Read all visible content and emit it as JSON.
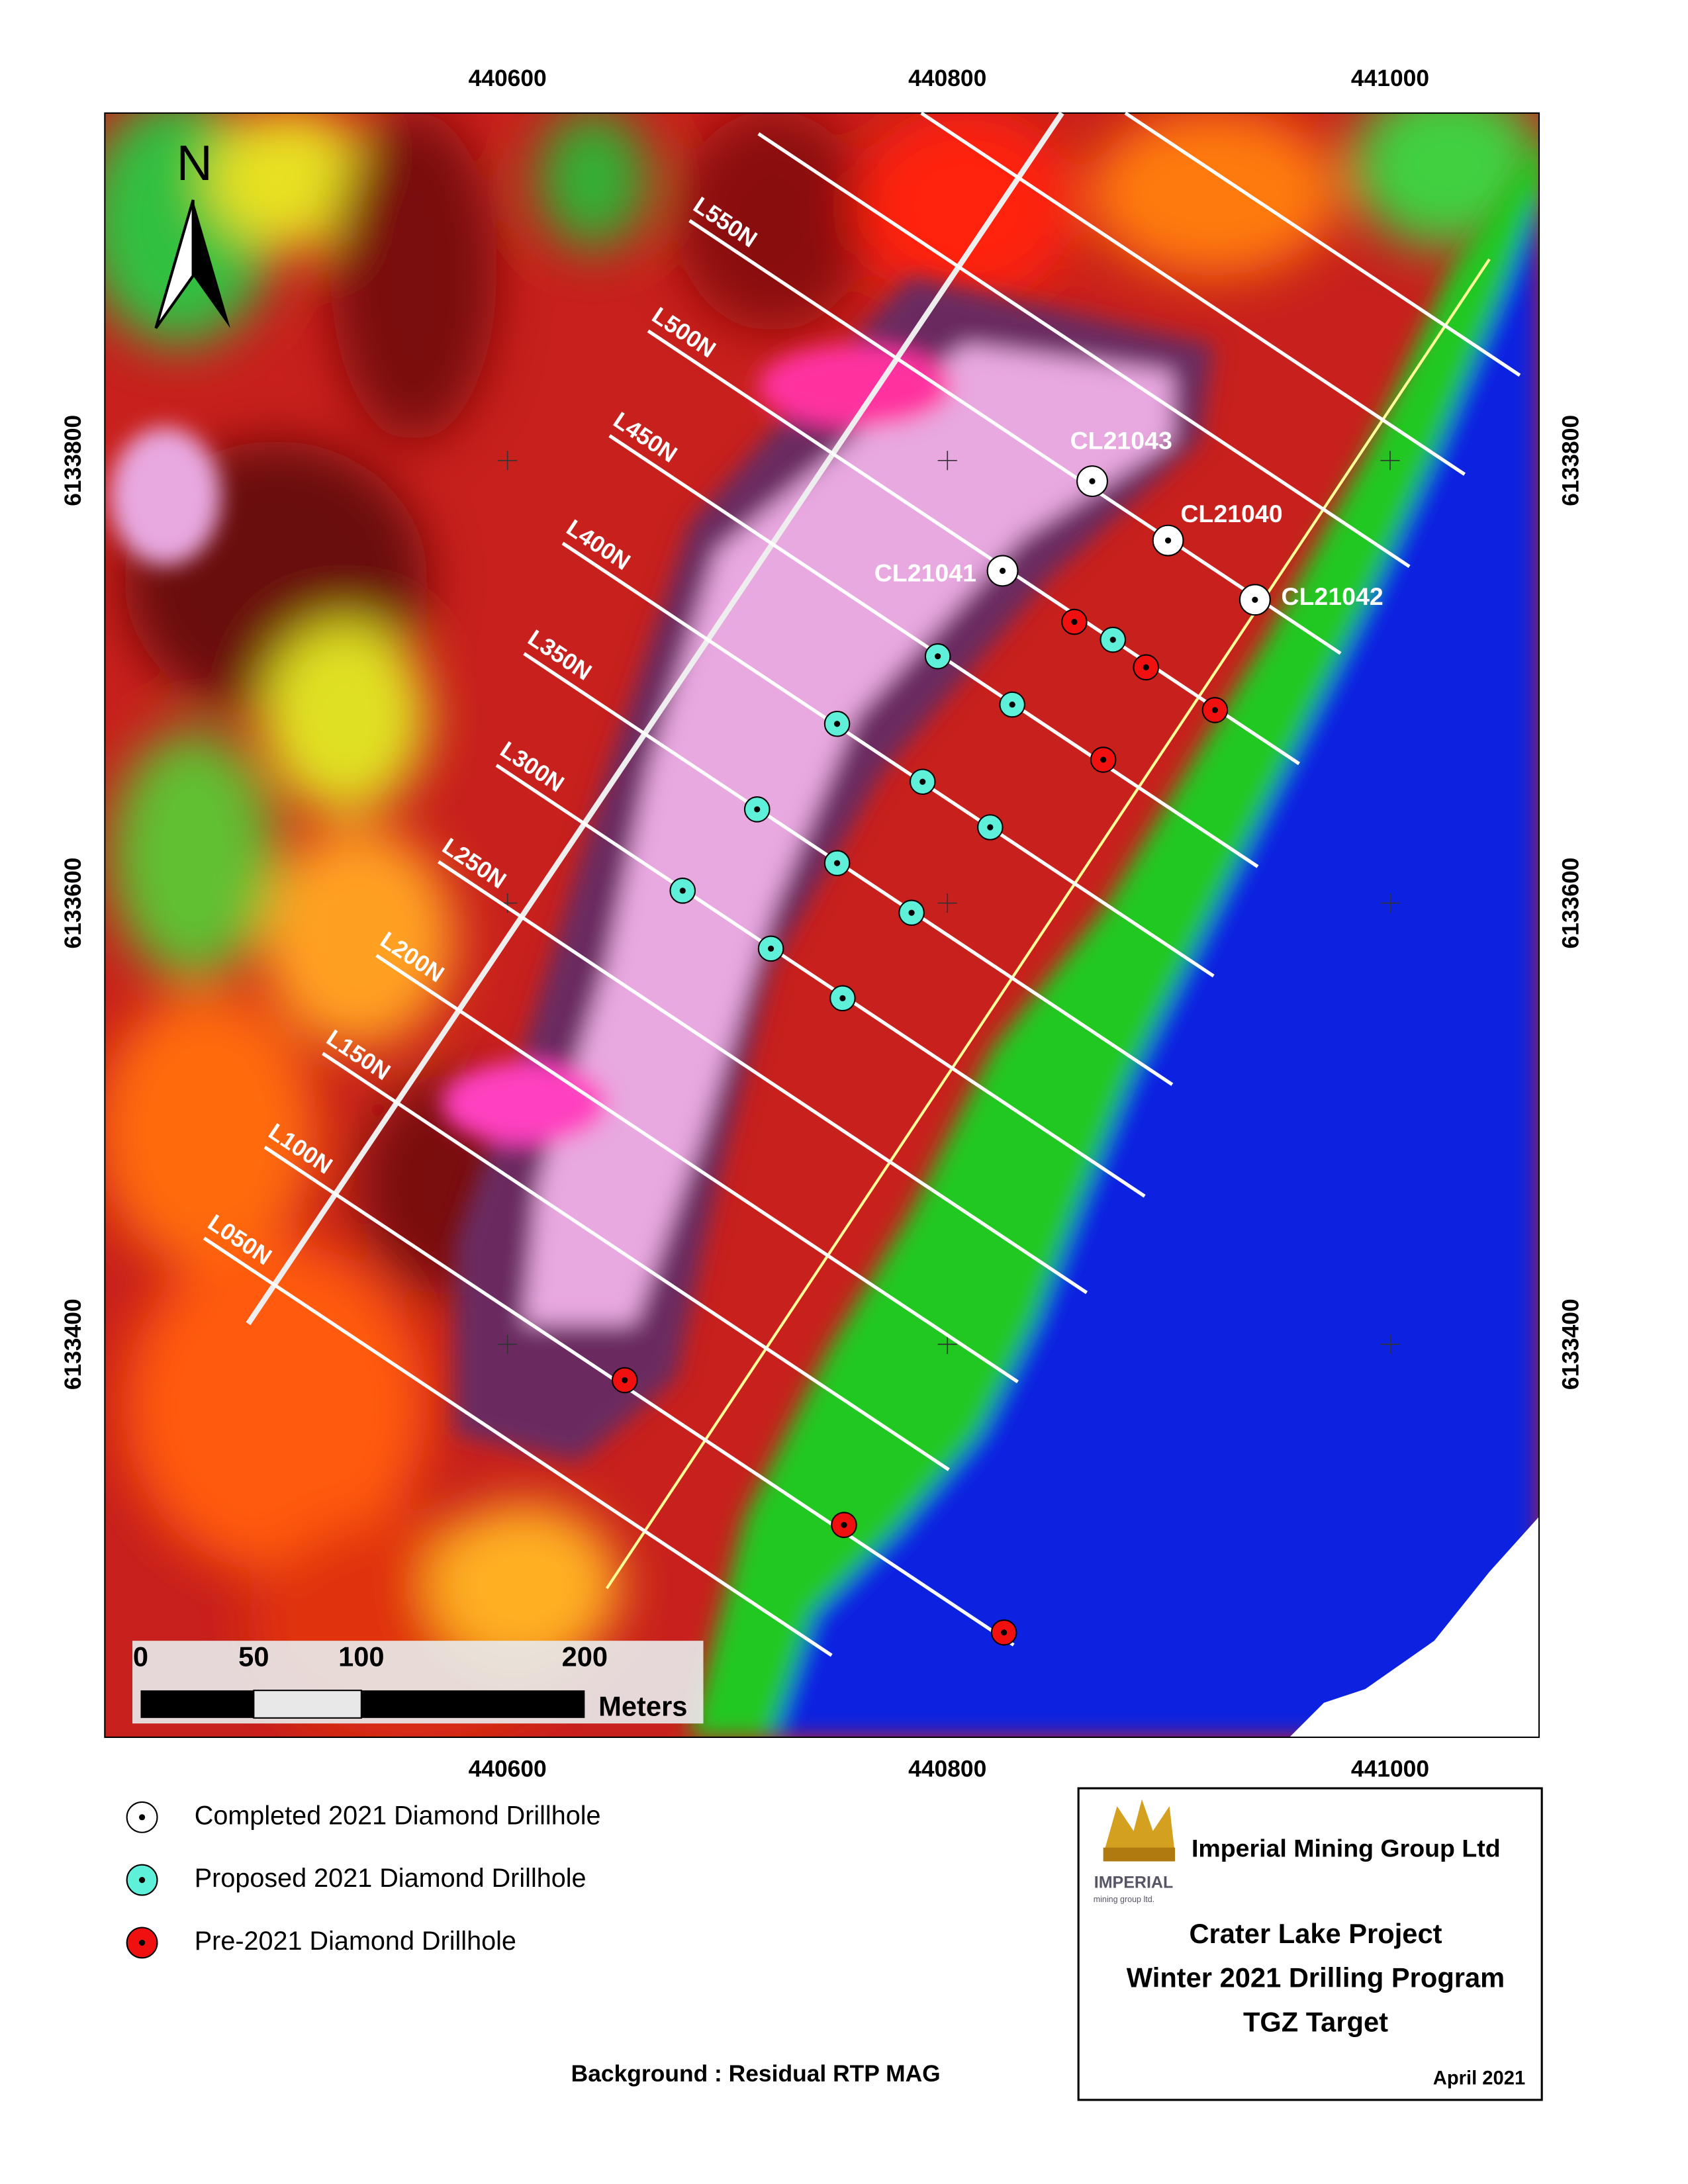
{
  "north_arrow": "N",
  "easting_ticks": [
    440600,
    440800,
    441000
  ],
  "northing_ticks": [
    6133800,
    6133600,
    6133400
  ],
  "survey_lines": [
    "L050N",
    "L100N",
    "L150N",
    "L200N",
    "L250N",
    "L300N",
    "L350N",
    "L400N",
    "L450N",
    "L500N",
    "L550N"
  ],
  "completed_drillholes": [
    "CL21043",
    "CL21040",
    "CL21041",
    "CL21042"
  ],
  "scale_bar": {
    "labels": [
      0,
      50,
      100,
      200
    ],
    "unit": "Meters"
  },
  "legend": [
    "Completed 2021 Diamond Drillhole",
    "Proposed 2021 Diamond Drillhole",
    "Pre-2021 Diamond Drillhole"
  ],
  "title_block": {
    "company": "Imperial Mining Group Ltd",
    "logo_text": "IMPERIAL",
    "logo_subtext": "mining group ltd.",
    "title_lines": [
      "Crater Lake Project",
      "Winter 2021 Drilling Program",
      "TGZ Target"
    ],
    "date": "April 2021"
  },
  "background_note": "Background : Residual RTP MAG"
}
